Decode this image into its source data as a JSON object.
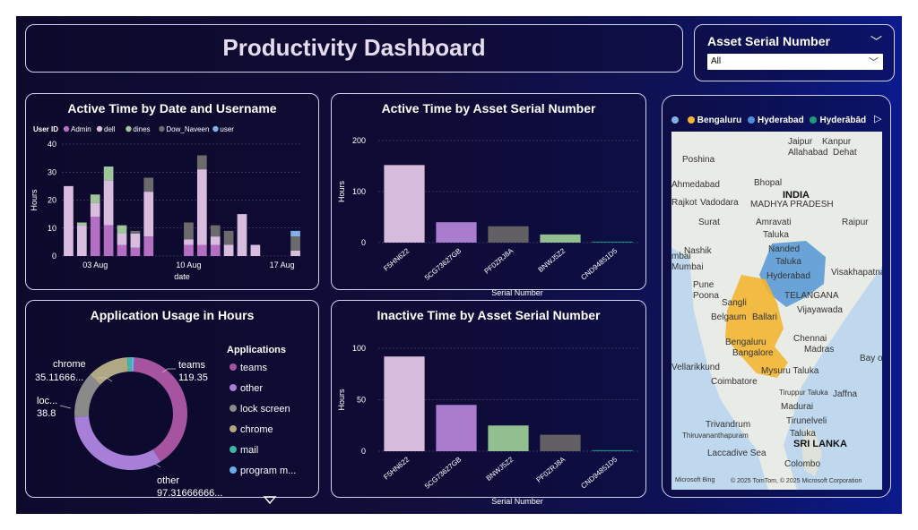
{
  "header": {
    "title": "Productivity Dashboard"
  },
  "slicer": {
    "label": "Asset Serial Number",
    "value": "All"
  },
  "active_date": {
    "title": "Active Time by Date and Username",
    "legend_title": "User ID",
    "ylabel": "Hours",
    "xlabel": "date",
    "yticks": [
      "0",
      "10",
      "20",
      "30",
      "40"
    ],
    "xticks": [
      "03 Aug",
      "10 Aug",
      "17 Aug"
    ]
  },
  "active_serial": {
    "title": "Active Time by Asset Serial Number",
    "ylabel": "Hours",
    "xlabel": "Serial Number",
    "yticks": [
      "0",
      "100",
      "200"
    ]
  },
  "inactive_serial": {
    "title": "Inactive Time by Asset Serial Number",
    "ylabel": "Hours",
    "xlabel": "Serial Number",
    "yticks": [
      "0",
      "50",
      "100"
    ]
  },
  "app_usage": {
    "title": "Application Usage in Hours",
    "legend_title": "Applications",
    "labels": {
      "teams_name": "teams",
      "teams_val": "119.35",
      "other_name": "other",
      "other_val": "97.31666666...",
      "lock_name": "loc...",
      "lock_val": "38.8",
      "chrome_name": "chrome",
      "chrome_val": "35.11666..."
    }
  },
  "map": {
    "legend": [
      "Bengaluru",
      "Hyderabad",
      "Hyderābād"
    ],
    "places": [
      "Jaipur",
      "Kanpur",
      "Allahabad",
      "Dehat",
      "Poshina",
      "Ahmedabad",
      "Bhopal",
      "INDIA",
      "Rajkot",
      "Vadodara",
      "MADHYA PRADESH",
      "Surat",
      "Amravati",
      "Taluka",
      "Raipur",
      "Nashik",
      "Nanded",
      "Taluka",
      "mbai",
      "Mumbai",
      "Hyderabad",
      "Visakhapatnam",
      "Pune",
      "Poona",
      "TELANGANA",
      "Sangli",
      "Belgaum",
      "Ballari",
      "Vijayawada",
      "Bengaluru",
      "Bangalore",
      "Chennai",
      "Madras",
      "Vellarikkund",
      "Mysuru Taluka",
      "Coimbatore",
      "Tiruppur Taluka",
      "Jaffna",
      "Madurai",
      "Tirunelveli",
      "Trivandrum",
      "Taluka",
      "Thiruvananthapuram",
      "Laccadive Sea",
      "SRI LANKA",
      "Colombo",
      "Bay of Bengal"
    ],
    "attribution": "© 2025 TomTom, © 2025 Microsoft Corporation",
    "brand": "Microsoft Bing"
  },
  "chart_data": [
    {
      "type": "bar",
      "title": "Active Time by Date and Username",
      "xlabel": "date",
      "ylabel": "Hours",
      "ylim": [
        0,
        40
      ],
      "legend_title": "User ID",
      "categories": [
        "01 Aug",
        "02 Aug",
        "03 Aug",
        "04 Aug",
        "05 Aug",
        "06 Aug",
        "07 Aug",
        "08 Aug",
        "09 Aug",
        "10 Aug",
        "11 Aug",
        "12 Aug",
        "13 Aug",
        "14 Aug",
        "15 Aug",
        "16 Aug",
        "17 Aug",
        "18 Aug"
      ],
      "series": [
        {
          "name": "Admin",
          "color": "#b46fc3",
          "values": [
            0,
            0,
            14,
            11,
            4,
            3,
            7,
            0,
            0,
            4,
            4,
            4,
            0,
            0,
            0,
            0,
            0,
            0
          ]
        },
        {
          "name": "dell",
          "color": "#d9bdde",
          "values": [
            25,
            11,
            5,
            16,
            4,
            5,
            16,
            0,
            0,
            2,
            27,
            3,
            4,
            15,
            4,
            0,
            0,
            2
          ]
        },
        {
          "name": "dines",
          "color": "#9fc59b",
          "values": [
            0,
            1,
            3,
            5,
            3,
            0,
            0,
            0,
            0,
            0,
            0,
            0,
            0,
            0,
            0,
            0,
            0,
            0
          ]
        },
        {
          "name": "Dow_Naveen",
          "color": "#6c6a6c",
          "values": [
            0,
            0,
            0,
            0,
            0,
            1,
            5,
            0,
            0,
            6,
            5,
            4,
            5,
            0,
            0,
            0,
            0,
            5
          ]
        },
        {
          "name": "user",
          "color": "#7fb1e5",
          "values": [
            0,
            0,
            0,
            0,
            0,
            0,
            0,
            0,
            0,
            0,
            0,
            0,
            0,
            0,
            0,
            0,
            0,
            2
          ]
        }
      ]
    },
    {
      "type": "bar",
      "title": "Active Time by Asset Serial Number",
      "xlabel": "Serial Number",
      "ylabel": "Hours",
      "ylim": [
        0,
        200
      ],
      "categories": [
        "F5HN622",
        "5CG73627GB",
        "PF0ZRJ8A",
        "BNWJ5Z2",
        "CND94851D5"
      ],
      "values": [
        152,
        40,
        32,
        16,
        2
      ],
      "colors": [
        "#d7bbdc",
        "#a97ccd",
        "#626062",
        "#93bf90",
        "#1e8c7c"
      ]
    },
    {
      "type": "pie",
      "title": "Application Usage in Hours",
      "legend_title": "Applications",
      "categories": [
        "teams",
        "other",
        "lock screen",
        "chrome",
        "mail",
        "program m..."
      ],
      "values": [
        119.35,
        97.31666666,
        38.8,
        35.11666,
        3.5,
        2.5
      ],
      "colors": [
        "#a6549f",
        "#a77ed8",
        "#8a8a8a",
        "#b0a882",
        "#3fb7a8",
        "#6aaee6"
      ]
    },
    {
      "type": "bar",
      "title": "Inactive Time by Asset Serial Number",
      "xlabel": "Serial Number",
      "ylabel": "Hours",
      "ylim": [
        0,
        100
      ],
      "categories": [
        "F5HN622",
        "5CG73627GB",
        "BNWJ5Z2",
        "PF0ZRJ8A",
        "CND94851D5"
      ],
      "values": [
        92,
        45,
        25,
        16,
        1
      ],
      "colors": [
        "#d7bbdc",
        "#a97ccd",
        "#93bf90",
        "#626062",
        "#1e8c7c"
      ]
    }
  ]
}
